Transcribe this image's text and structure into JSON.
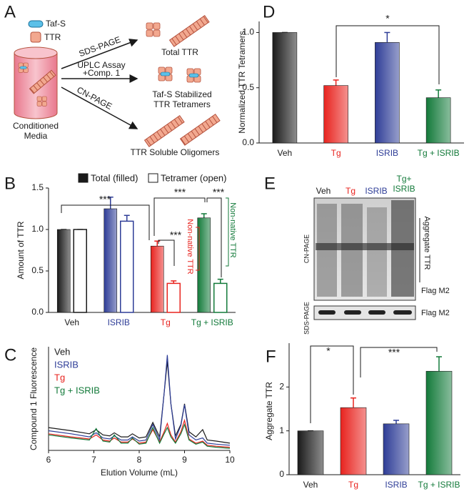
{
  "diagram": {
    "panel": "A",
    "legend": [
      "Taf-S",
      "TTR"
    ],
    "source": [
      "Conditioned",
      "Media"
    ],
    "methods": [
      [
        "SDS-PAGE"
      ],
      [
        "UPLC Assay",
        "+Comp. 1"
      ],
      [
        "CN-PAGE"
      ]
    ],
    "outputs": [
      [
        "Total TTR"
      ],
      [
        "Taf-S Stabilized",
        "TTR Tetramers"
      ],
      [
        "TTR Soluble Oligomers"
      ]
    ]
  },
  "blot": {
    "panel": "E",
    "lanes": [
      [
        "Veh"
      ],
      [
        "Tg"
      ],
      [
        "ISRIB"
      ],
      [
        "Tg+",
        "ISRIB"
      ]
    ],
    "lane_colors": [
      "#1a1a1a",
      "#e8231e",
      "#2e3d97",
      "#137a3a"
    ],
    "gels": [
      "CN-PAGE",
      "SDS-PAGE"
    ],
    "bands": [
      "Aggregate TTR",
      "Flag M2",
      "Flag M2"
    ]
  },
  "chart_data": [
    {
      "panel": "D",
      "type": "bar",
      "ylabel": "Normalized TTR Tetramers",
      "categories": [
        "Veh",
        "Tg",
        "ISRIB",
        "Tg + ISRIB"
      ],
      "values": [
        1.0,
        0.52,
        0.91,
        0.41
      ],
      "errors": [
        0,
        0.05,
        0.09,
        0.07
      ],
      "colors": [
        "#1a1a1a",
        "#e8231e",
        "#2e3d97",
        "#137a3a"
      ],
      "ylim": [
        0,
        1.1
      ],
      "yticks": [
        {
          "value": 0,
          "label": "0.0"
        },
        {
          "value": 0.5,
          "label": "0.5"
        },
        {
          "value": 1,
          "label": "1.0"
        }
      ],
      "annotations": [
        "*"
      ]
    },
    {
      "panel": "B",
      "type": "bar",
      "ylabel": "Amount of TTR",
      "categories": [
        "Veh",
        "ISRIB",
        "Tg",
        "Tg + ISRIB"
      ],
      "colors": [
        "#1a1a1a",
        "#2e3d97",
        "#e8231e",
        "#137a3a"
      ],
      "series": [
        {
          "name": "Total (filled)",
          "style": "filled",
          "values": [
            1.0,
            1.25,
            0.8,
            1.14
          ],
          "errors": [
            0,
            0.14,
            0.06,
            0.05
          ]
        },
        {
          "name": "Tetramer (open)",
          "style": "open",
          "values": [
            1.0,
            1.1,
            0.35,
            0.35
          ],
          "errors": [
            0,
            0.07,
            0.03,
            0.05
          ]
        }
      ],
      "ylim": [
        0,
        1.5
      ],
      "yticks": [
        {
          "value": 0,
          "label": "0.0"
        },
        {
          "value": 0.5,
          "label": "0.5"
        },
        {
          "value": 1,
          "label": "1.0"
        },
        {
          "value": 1.5,
          "label": "1.5"
        }
      ],
      "annotations": [
        "***",
        "***",
        "***",
        "***",
        "Non-native TTR",
        "Non-native TTR"
      ]
    },
    {
      "panel": "C",
      "type": "line",
      "ylabel": "Compound 1 Fluorescence",
      "xlabel": "Elution Volume (mL)",
      "x": [
        6,
        6.5,
        6.9,
        7.05,
        7.2,
        7.35,
        7.45,
        7.6,
        7.75,
        7.85,
        8.0,
        8.15,
        8.3,
        8.45,
        8.55,
        8.62,
        8.7,
        8.8,
        8.92,
        9.0,
        9.1,
        9.25,
        9.4,
        9.5,
        9.7,
        10
      ],
      "xlim": [
        6,
        10
      ],
      "xticks": [
        6,
        7,
        8,
        9,
        10
      ],
      "ylim": [
        0,
        100
      ],
      "series": [
        {
          "name": "Veh",
          "color": "#1a1a1a",
          "values": [
            22,
            19,
            16,
            20,
            15,
            14,
            17,
            13,
            13,
            16,
            12,
            13,
            27,
            13,
            55,
            86,
            45,
            14,
            25,
            45,
            18,
            13,
            20,
            10,
            9,
            7
          ]
        },
        {
          "name": "ISRIB",
          "color": "#2e3d97",
          "values": [
            19,
            16,
            13,
            17,
            12,
            11,
            14,
            10,
            10,
            13,
            9,
            10,
            25,
            10,
            55,
            92,
            45,
            11,
            24,
            44,
            15,
            10,
            12,
            7,
            6,
            5
          ]
        },
        {
          "name": "Tg",
          "color": "#e8231e",
          "values": [
            16,
            13,
            11,
            15,
            10,
            9,
            12,
            8,
            8,
            11,
            7,
            8,
            20,
            8,
            18,
            26,
            15,
            8,
            18,
            29,
            11,
            7,
            9,
            5,
            4,
            3
          ]
        },
        {
          "name": "Tg + ISRIB",
          "color": "#137a3a",
          "values": [
            15,
            12,
            10,
            21,
            9,
            8,
            15,
            7,
            7,
            12,
            6,
            7,
            22,
            7,
            16,
            22,
            13,
            7,
            16,
            25,
            10,
            6,
            8,
            4,
            3,
            2
          ]
        }
      ]
    },
    {
      "panel": "F",
      "type": "bar",
      "ylabel": "Aggregate TTR",
      "categories": [
        "Veh",
        "Tg",
        "ISRIB",
        "Tg + ISRIB"
      ],
      "values": [
        1.0,
        1.53,
        1.16,
        2.36
      ],
      "errors": [
        0,
        0.22,
        0.08,
        0.33
      ],
      "colors": [
        "#1a1a1a",
        "#e8231e",
        "#2e3d97",
        "#137a3a"
      ],
      "ylim": [
        0,
        3
      ],
      "yticks": [
        0,
        1,
        2
      ],
      "annotations": [
        "*",
        "***"
      ]
    }
  ]
}
